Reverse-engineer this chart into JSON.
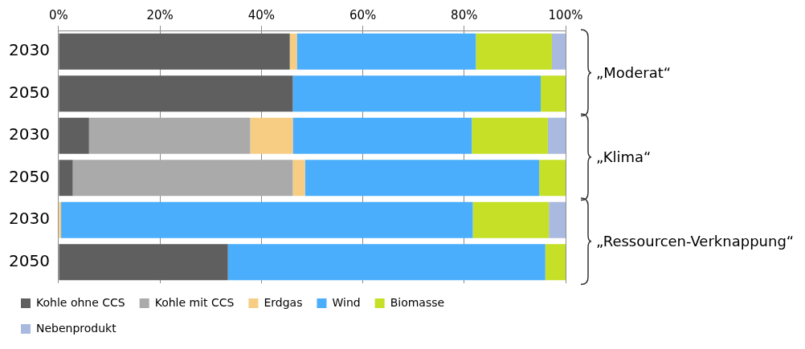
{
  "chart_data": {
    "type": "bar",
    "orientation": "horizontal",
    "stacked": true,
    "categories": [
      "2030",
      "2050",
      "2030",
      "2050",
      "2030",
      "2050"
    ],
    "series": [
      {
        "name": "Kohle ohne CCS",
        "color": "#5f5f5f",
        "values": [
          45.6,
          46.2,
          6.0,
          2.8,
          0,
          33.4
        ]
      },
      {
        "name": "Kohle mit CCS",
        "color": "#aaaaaa",
        "values": [
          0,
          0,
          31.8,
          43.4,
          0,
          0
        ]
      },
      {
        "name": "Erdgas",
        "color": "#f6cd83",
        "values": [
          1.4,
          0,
          8.4,
          2.4,
          0.5,
          0
        ]
      },
      {
        "name": "Wind",
        "color": "#4aaefc",
        "values": [
          35.3,
          48.9,
          35.3,
          46.2,
          81.2,
          62.6
        ]
      },
      {
        "name": "Biomasse",
        "color": "#c5e026",
        "values": [
          15.0,
          4.9,
          15.0,
          5.2,
          15.0,
          4.0
        ]
      },
      {
        "name": "Nebenprodukt",
        "color": "#aab9df",
        "values": [
          2.7,
          0,
          3.5,
          0,
          3.3,
          0
        ]
      }
    ],
    "xlim": [
      0,
      100
    ],
    "xticks": [
      {
        "value": 0,
        "label": "0%"
      },
      {
        "value": 20,
        "label": "20%"
      },
      {
        "value": 40,
        "label": "40%"
      },
      {
        "value": 60,
        "label": "60%"
      },
      {
        "value": 80,
        "label": "80%"
      },
      {
        "value": 100,
        "label": "100%"
      }
    ],
    "grid": "x",
    "legend": "bottom",
    "annotations": [
      "„Moderat“",
      "„Klima“",
      "„Ressourcen-Verknappung“"
    ]
  }
}
